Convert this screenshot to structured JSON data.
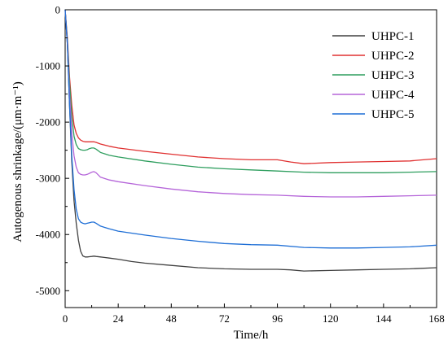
{
  "chart_data": {
    "type": "line",
    "xlabel": "Time/h",
    "ylabel": "Autogenous shrinkage/(μm·m⁻¹)",
    "xlim": [
      0,
      168
    ],
    "ylim": [
      -5300,
      0
    ],
    "xticks": [
      0,
      24,
      48,
      72,
      96,
      120,
      144,
      168
    ],
    "xtick_labels": [
      "0",
      "24",
      "48",
      "72",
      "96",
      "120",
      "144",
      "168"
    ],
    "yticks": [
      0,
      -1000,
      -2000,
      -3000,
      -4000,
      -5000
    ],
    "ytick_labels": [
      "0",
      "-1000",
      "-2000",
      "-3000",
      "-4000",
      "-5000"
    ],
    "grid": false,
    "legend_position": "top-right",
    "series": [
      {
        "name": "UHPC-1",
        "color": "#404040",
        "x": [
          0,
          1,
          2,
          3,
          4,
          5,
          6,
          7,
          8,
          9,
          10,
          11,
          12,
          13,
          14,
          16,
          20,
          24,
          30,
          36,
          48,
          60,
          72,
          84,
          96,
          102,
          108,
          120,
          132,
          144,
          156,
          168
        ],
        "y": [
          0,
          -600,
          -1700,
          -2700,
          -3400,
          -3800,
          -4100,
          -4300,
          -4380,
          -4400,
          -4400,
          -4395,
          -4390,
          -4385,
          -4390,
          -4400,
          -4420,
          -4440,
          -4480,
          -4510,
          -4550,
          -4590,
          -4610,
          -4620,
          -4620,
          -4630,
          -4650,
          -4640,
          -4630,
          -4620,
          -4610,
          -4590
        ]
      },
      {
        "name": "UHPC-2",
        "color": "#e03030",
        "x": [
          0,
          1,
          2,
          3,
          4,
          5,
          6,
          7,
          8,
          9,
          10,
          11,
          12,
          13,
          14,
          16,
          20,
          24,
          36,
          48,
          60,
          72,
          84,
          96,
          102,
          108,
          120,
          132,
          144,
          156,
          168
        ],
        "y": [
          0,
          -500,
          -1200,
          -1700,
          -2050,
          -2200,
          -2280,
          -2320,
          -2340,
          -2350,
          -2350,
          -2350,
          -2350,
          -2350,
          -2360,
          -2390,
          -2430,
          -2460,
          -2520,
          -2570,
          -2620,
          -2650,
          -2670,
          -2670,
          -2710,
          -2740,
          -2720,
          -2710,
          -2700,
          -2690,
          -2650
        ]
      },
      {
        "name": "UHPC-3",
        "color": "#2e9e5e",
        "x": [
          0,
          1,
          2,
          3,
          4,
          5,
          6,
          7,
          8,
          9,
          10,
          11,
          12,
          13,
          14,
          16,
          20,
          24,
          36,
          48,
          60,
          72,
          84,
          96,
          108,
          120,
          132,
          144,
          156,
          168
        ],
        "y": [
          0,
          -550,
          -1300,
          -1900,
          -2250,
          -2400,
          -2470,
          -2490,
          -2500,
          -2500,
          -2490,
          -2470,
          -2460,
          -2460,
          -2480,
          -2540,
          -2590,
          -2620,
          -2690,
          -2750,
          -2800,
          -2830,
          -2850,
          -2870,
          -2890,
          -2900,
          -2900,
          -2900,
          -2890,
          -2880
        ]
      },
      {
        "name": "UHPC-4",
        "color": "#b565d9",
        "x": [
          0,
          1,
          2,
          3,
          4,
          5,
          6,
          7,
          8,
          9,
          10,
          11,
          12,
          13,
          14,
          16,
          20,
          24,
          36,
          48,
          60,
          72,
          84,
          96,
          108,
          120,
          132,
          144,
          156,
          168
        ],
        "y": [
          0,
          -600,
          -1500,
          -2200,
          -2600,
          -2800,
          -2900,
          -2930,
          -2940,
          -2940,
          -2930,
          -2910,
          -2890,
          -2880,
          -2900,
          -2980,
          -3030,
          -3060,
          -3130,
          -3190,
          -3240,
          -3270,
          -3290,
          -3300,
          -3320,
          -3330,
          -3330,
          -3320,
          -3310,
          -3300
        ]
      },
      {
        "name": "UHPC-5",
        "color": "#1f6fd6",
        "x": [
          0,
          1,
          2,
          3,
          4,
          5,
          6,
          7,
          8,
          9,
          10,
          11,
          12,
          13,
          14,
          16,
          20,
          24,
          36,
          48,
          60,
          72,
          84,
          96,
          108,
          120,
          132,
          144,
          156,
          168
        ],
        "y": [
          0,
          -600,
          -1700,
          -2600,
          -3200,
          -3550,
          -3720,
          -3780,
          -3800,
          -3810,
          -3800,
          -3790,
          -3780,
          -3780,
          -3800,
          -3850,
          -3900,
          -3940,
          -4010,
          -4070,
          -4120,
          -4160,
          -4180,
          -4190,
          -4230,
          -4240,
          -4240,
          -4230,
          -4220,
          -4190
        ]
      }
    ]
  }
}
